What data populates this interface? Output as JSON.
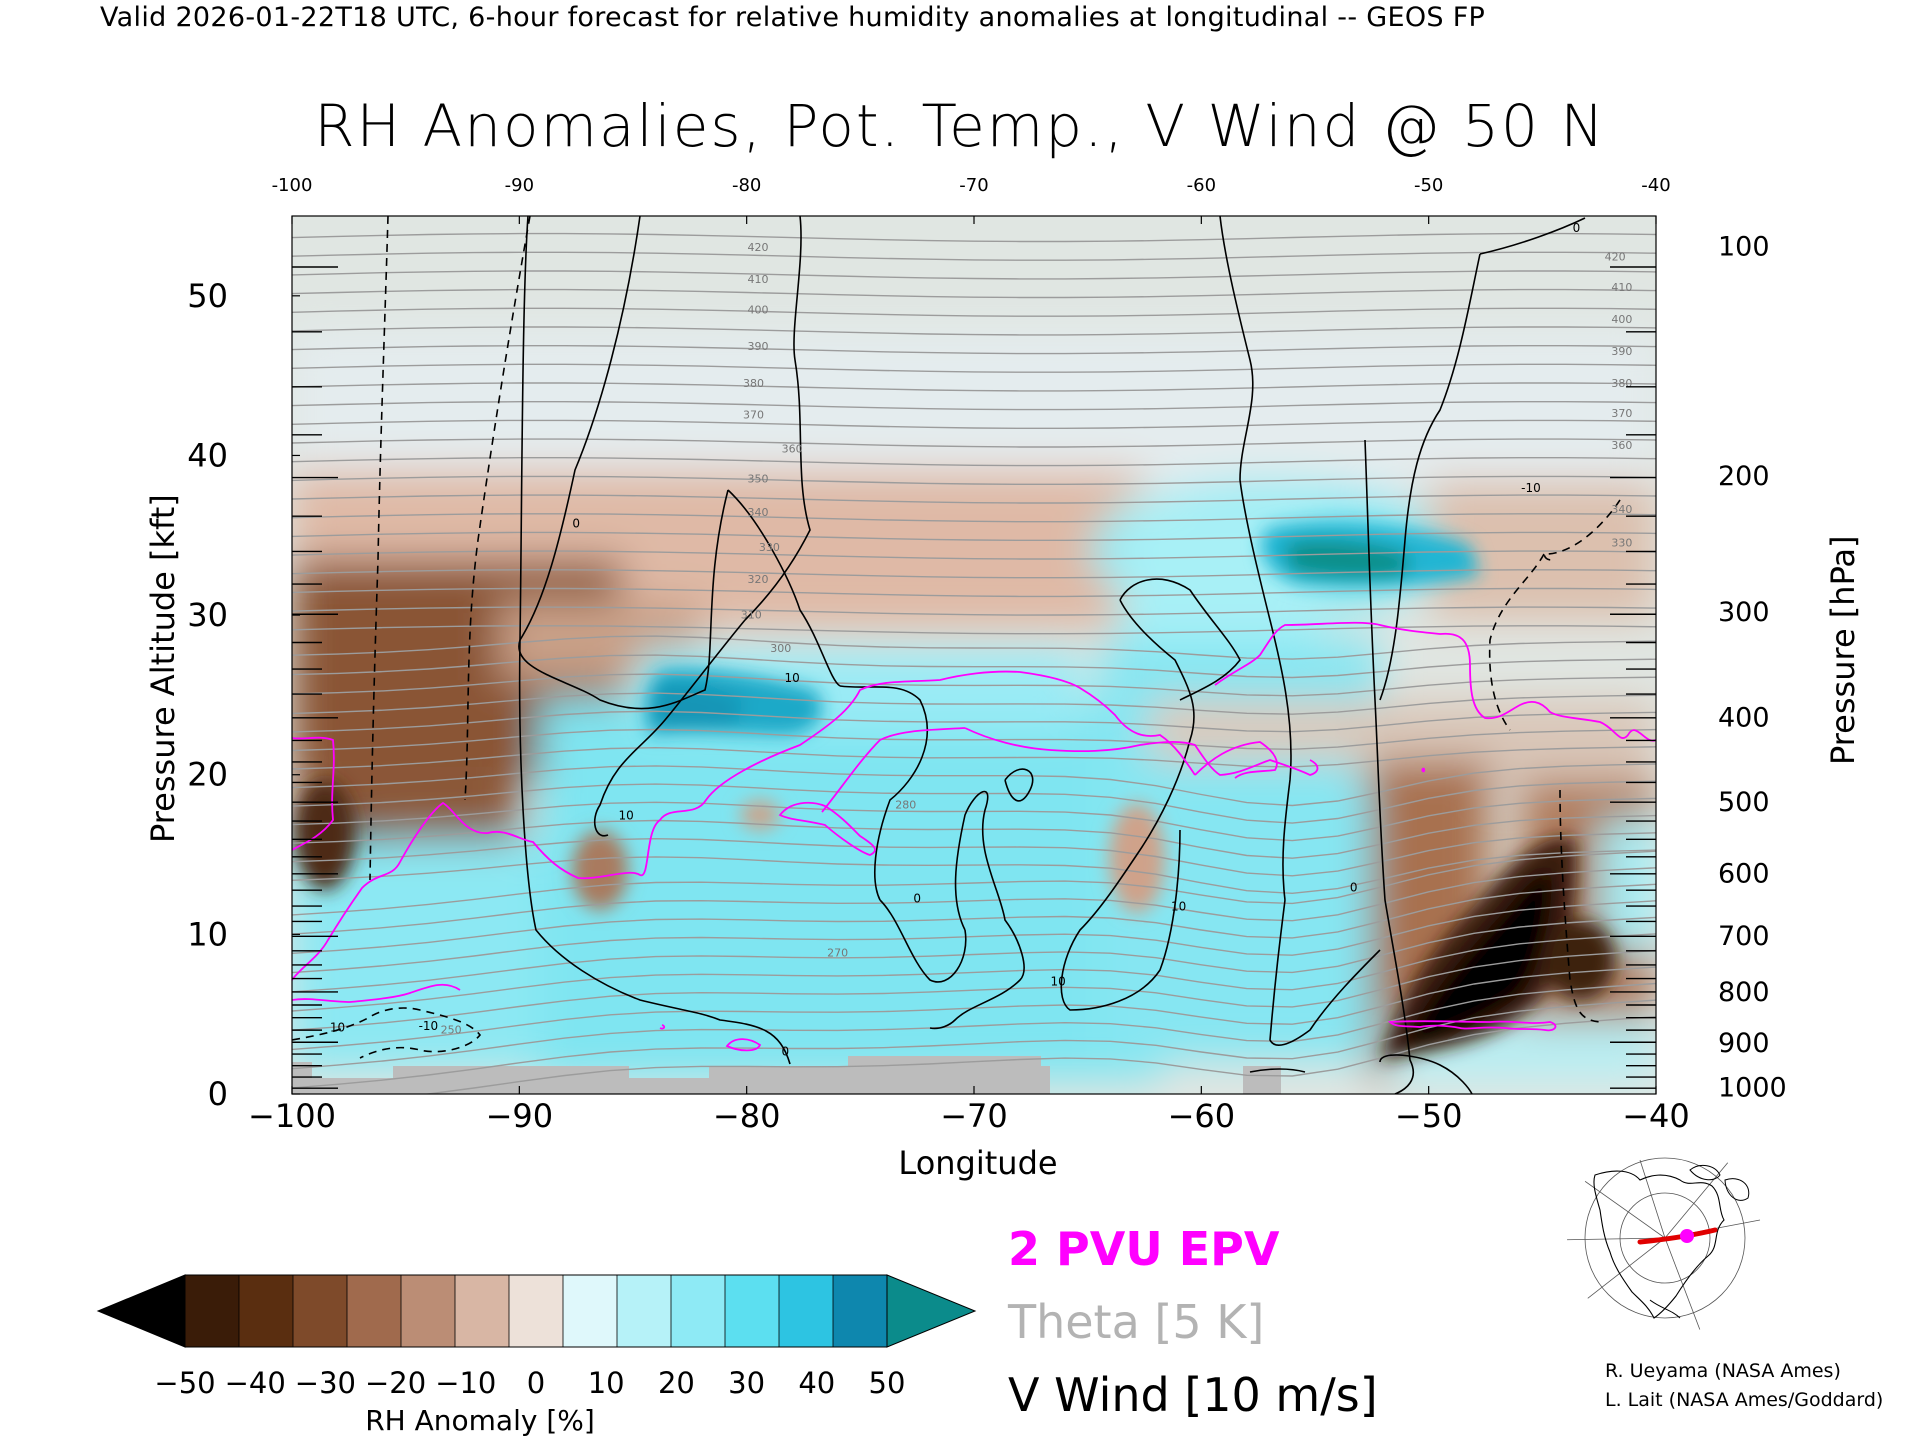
{
  "header": {
    "valid_line": "Valid 2026-01-22T18 UTC, 6-hour forecast for relative humidity anomalies at longitudinal -- GEOS FP",
    "title": "RH Anomalies, Pot. Temp., V Wind @ 50 N"
  },
  "chart_data": {
    "type": "heatmap",
    "title": "RH Anomalies, Pot. Temp., V Wind @ 50 N",
    "xlabel": "Longitude",
    "ylabel_left": "Pressure Altitude [kft]",
    "ylabel_right": "Pressure [hPa]",
    "xlim": [
      -100,
      -40
    ],
    "ylim": [
      0,
      55
    ],
    "x_ticks": [
      -100,
      -90,
      -80,
      -70,
      -60,
      -50,
      -40
    ],
    "x_tick_labels": [
      "−100",
      "−90",
      "−80",
      "−70",
      "−60",
      "−50",
      "−40"
    ],
    "top_tick_labels": [
      "-100",
      "-90",
      "-80",
      "-70",
      "-60",
      "-50",
      "-40"
    ],
    "y_ticks": [
      0,
      10,
      20,
      30,
      40,
      50
    ],
    "pressure_ticks": [
      {
        "hPa": "100",
        "kft": 53.1
      },
      {
        "hPa": "200",
        "kft": 38.7
      },
      {
        "hPa": "300",
        "kft": 30.2
      },
      {
        "hPa": "400",
        "kft": 23.6
      },
      {
        "hPa": "500",
        "kft": 18.3
      },
      {
        "hPa": "600",
        "kft": 13.8
      },
      {
        "hPa": "700",
        "kft": 9.9
      },
      {
        "hPa": "800",
        "kft": 6.4
      },
      {
        "hPa": "900",
        "kft": 3.2
      },
      {
        "hPa": "1000",
        "kft": 0.4
      }
    ],
    "theta_labels": [
      {
        "label": "420",
        "lon": -79.5,
        "kft": 52.8
      },
      {
        "label": "410",
        "lon": -79.5,
        "kft": 50.8
      },
      {
        "label": "400",
        "lon": -79.5,
        "kft": 48.9
      },
      {
        "label": "390",
        "lon": -79.5,
        "kft": 46.6
      },
      {
        "label": "380",
        "lon": -79.7,
        "kft": 44.3
      },
      {
        "label": "370",
        "lon": -79.7,
        "kft": 42.3
      },
      {
        "label": "360",
        "lon": -78.0,
        "kft": 40.2
      },
      {
        "label": "350",
        "lon": -79.5,
        "kft": 38.3
      },
      {
        "label": "340",
        "lon": -79.5,
        "kft": 36.2
      },
      {
        "label": "330",
        "lon": -79.0,
        "kft": 34.0
      },
      {
        "label": "320",
        "lon": -79.5,
        "kft": 32.0
      },
      {
        "label": "310",
        "lon": -79.8,
        "kft": 29.8
      },
      {
        "label": "300",
        "lon": -78.5,
        "kft": 27.7
      },
      {
        "label": "280",
        "lon": -73.0,
        "kft": 17.9
      },
      {
        "label": "270",
        "lon": -76.0,
        "kft": 8.6
      },
      {
        "label": "250",
        "lon": -93.0,
        "kft": 3.8
      },
      {
        "label": "420",
        "lon": -41.8,
        "kft": 52.2
      },
      {
        "label": "410",
        "lon": -41.5,
        "kft": 50.3
      },
      {
        "label": "400",
        "lon": -41.5,
        "kft": 48.3
      },
      {
        "label": "390",
        "lon": -41.5,
        "kft": 46.3
      },
      {
        "label": "380",
        "lon": -41.5,
        "kft": 44.3
      },
      {
        "label": "370",
        "lon": -41.5,
        "kft": 42.4
      },
      {
        "label": "360",
        "lon": -41.5,
        "kft": 40.4
      },
      {
        "label": "340",
        "lon": -41.5,
        "kft": 36.4
      },
      {
        "label": "330",
        "lon": -41.5,
        "kft": 34.3
      }
    ],
    "vwind_labels": [
      {
        "label": "0",
        "lon": -87.5,
        "kft": 35.5
      },
      {
        "label": "10",
        "lon": -85.3,
        "kft": 17.2
      },
      {
        "label": "10",
        "lon": -78.0,
        "kft": 25.8
      },
      {
        "label": "0",
        "lon": -72.5,
        "kft": 12.0
      },
      {
        "label": "10",
        "lon": -61.0,
        "kft": 11.5
      },
      {
        "label": "10",
        "lon": -66.3,
        "kft": 6.8
      },
      {
        "label": "0",
        "lon": -53.3,
        "kft": 12.7
      },
      {
        "label": "-10",
        "lon": -45.5,
        "kft": 37.7
      },
      {
        "label": "10",
        "lon": -98.0,
        "kft": 3.9
      },
      {
        "label": "-10",
        "lon": -94.0,
        "kft": 4.0
      },
      {
        "label": "0",
        "lon": -78.3,
        "kft": 2.4
      },
      {
        "label": "0",
        "lon": -43.5,
        "kft": 54.0
      }
    ],
    "colorbar": {
      "title": "RH Anomaly [%]",
      "tick_labels": [
        "−50",
        "−40",
        "−30",
        "−20",
        "−10",
        "0",
        "10",
        "20",
        "30",
        "40",
        "50"
      ],
      "colors": [
        "#3a1c08",
        "#5a2e10",
        "#7e4a2a",
        "#a06a4d",
        "#bb8d75",
        "#d8b6a4",
        "#ede1d9",
        "#dff8fb",
        "#b6f2f8",
        "#8eeaf5",
        "#5cdff0",
        "#2dc4e2",
        "#0e87ae"
      ],
      "under_color": "#000000",
      "over_color": "#0b8b8b"
    },
    "legend": [
      "2 PVU EPV",
      "Theta [5 K]",
      "V Wind [10 m/s]"
    ]
  },
  "legend": {
    "epv": "2 PVU EPV",
    "theta": "Theta [5 K]",
    "vwind": "V Wind [10 m/s]"
  },
  "credits": {
    "line1": "R. Ueyama (NASA Ames)",
    "line2": "L. Lait (NASA Ames/Goddard)"
  },
  "colors": {
    "epv": "#ff00ff",
    "theta": "#aaaaaa",
    "vwind": "#000000",
    "terrain": "#bcbcbc"
  },
  "inset_map": {
    "icon": "north-america-locator-map-icon"
  }
}
